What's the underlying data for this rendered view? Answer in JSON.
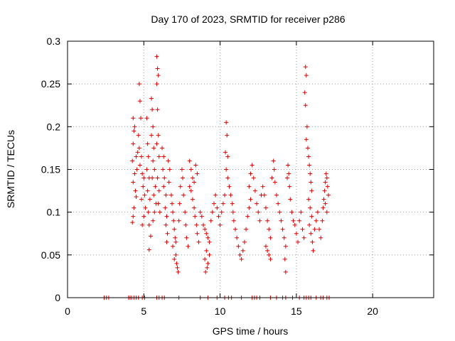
{
  "chart_data": {
    "type": "scatter",
    "title": "Day 170 of 2023, SRMTID for receiver p286",
    "xlabel": "GPS time / hours",
    "ylabel": "SRMTID / TECUs",
    "xlim": [
      0,
      24
    ],
    "ylim": [
      0,
      0.3
    ],
    "x_ticks": [
      0,
      5,
      10,
      15,
      20
    ],
    "y_ticks": [
      0,
      0.05,
      0.1,
      0.15,
      0.2,
      0.25,
      0.3
    ],
    "x_tick_labels": [
      "0",
      "5",
      "10",
      "15",
      "20"
    ],
    "y_tick_labels": [
      "0",
      "0.05",
      "0.1",
      "0.15",
      "0.2",
      "0.25",
      "0.3"
    ],
    "grid": true,
    "marker": "+",
    "color": "#e00000",
    "series": [
      {
        "name": "SRMTID",
        "points": [
          [
            2.4,
            0
          ],
          [
            2.55,
            0
          ],
          [
            2.7,
            0
          ],
          [
            4.0,
            0
          ],
          [
            4.1,
            0
          ],
          [
            4.2,
            0
          ],
          [
            4.35,
            0
          ],
          [
            4.5,
            0
          ],
          [
            4.65,
            0
          ],
          [
            4.9,
            0
          ],
          [
            5.05,
            0
          ],
          [
            5.85,
            0
          ],
          [
            6.0,
            0
          ],
          [
            6.2,
            0
          ],
          [
            6.35,
            0
          ],
          [
            7.3,
            0
          ],
          [
            8.7,
            0
          ],
          [
            9.2,
            0
          ],
          [
            9.8,
            0
          ],
          [
            10.3,
            0
          ],
          [
            10.55,
            0
          ],
          [
            10.75,
            0
          ],
          [
            11.4,
            0
          ],
          [
            12.1,
            0
          ],
          [
            12.25,
            0
          ],
          [
            12.4,
            0
          ],
          [
            12.6,
            0
          ],
          [
            13.3,
            0
          ],
          [
            13.7,
            0
          ],
          [
            14.1,
            0
          ],
          [
            14.3,
            0
          ],
          [
            14.75,
            0
          ],
          [
            15.2,
            0
          ],
          [
            15.5,
            0
          ],
          [
            15.65,
            0
          ],
          [
            15.8,
            0
          ],
          [
            15.95,
            0
          ],
          [
            16.3,
            0
          ],
          [
            16.6,
            0
          ],
          [
            16.75,
            0
          ],
          [
            17.0,
            0
          ],
          [
            17.15,
            0
          ],
          [
            4.3,
            0.21
          ],
          [
            4.35,
            0.195
          ],
          [
            4.4,
            0.2
          ],
          [
            4.3,
            0.18
          ],
          [
            4.5,
            0.165
          ],
          [
            4.6,
            0.17
          ],
          [
            4.25,
            0.16
          ],
          [
            4.4,
            0.145
          ],
          [
            4.3,
            0.135
          ],
          [
            4.45,
            0.125
          ],
          [
            4.35,
            0.105
          ],
          [
            4.3,
            0.095
          ],
          [
            4.25,
            0.088
          ],
          [
            4.5,
            0.118
          ],
          [
            4.55,
            0.15
          ],
          [
            4.7,
            0.25
          ],
          [
            4.75,
            0.23
          ],
          [
            4.8,
            0.21
          ],
          [
            4.65,
            0.19
          ],
          [
            4.7,
            0.175
          ],
          [
            4.85,
            0.165
          ],
          [
            4.75,
            0.155
          ],
          [
            4.9,
            0.145
          ],
          [
            5.0,
            0.14
          ],
          [
            4.95,
            0.13
          ],
          [
            5.05,
            0.12
          ],
          [
            4.85,
            0.115
          ],
          [
            5.1,
            0.105
          ],
          [
            5.0,
            0.095
          ],
          [
            4.9,
            0.085
          ],
          [
            5.2,
            0.21
          ],
          [
            5.25,
            0.18
          ],
          [
            5.3,
            0.165
          ],
          [
            5.2,
            0.15
          ],
          [
            5.35,
            0.14
          ],
          [
            5.25,
            0.125
          ],
          [
            5.4,
            0.115
          ],
          [
            5.3,
            0.1
          ],
          [
            5.35,
            0.085
          ],
          [
            5.45,
            0.072
          ],
          [
            5.35,
            0.056
          ],
          [
            5.5,
            0.233
          ],
          [
            5.55,
            0.22
          ],
          [
            5.6,
            0.2
          ],
          [
            5.5,
            0.19
          ],
          [
            5.65,
            0.175
          ],
          [
            5.6,
            0.16
          ],
          [
            5.7,
            0.15
          ],
          [
            5.55,
            0.14
          ],
          [
            5.75,
            0.13
          ],
          [
            5.65,
            0.12
          ],
          [
            5.8,
            0.11
          ],
          [
            5.7,
            0.1
          ],
          [
            5.6,
            0.09
          ],
          [
            5.85,
            0.282
          ],
          [
            5.9,
            0.268
          ],
          [
            5.95,
            0.26
          ],
          [
            5.85,
            0.25
          ],
          [
            5.9,
            0.22
          ],
          [
            5.95,
            0.19
          ],
          [
            5.85,
            0.18
          ],
          [
            6.0,
            0.165
          ],
          [
            5.9,
            0.14
          ],
          [
            6.0,
            0.125
          ],
          [
            5.95,
            0.11
          ],
          [
            6.05,
            0.1
          ],
          [
            6.2,
            0.175
          ],
          [
            6.3,
            0.165
          ],
          [
            6.25,
            0.15
          ],
          [
            6.35,
            0.14
          ],
          [
            6.3,
            0.13
          ],
          [
            6.45,
            0.12
          ],
          [
            6.4,
            0.105
          ],
          [
            6.5,
            0.095
          ],
          [
            6.45,
            0.085
          ],
          [
            6.55,
            0.075
          ],
          [
            6.5,
            0.065
          ],
          [
            6.6,
            0.16
          ],
          [
            6.7,
            0.15
          ],
          [
            6.65,
            0.135
          ],
          [
            6.8,
            0.12
          ],
          [
            6.85,
            0.11
          ],
          [
            6.9,
            0.1
          ],
          [
            6.95,
            0.09
          ],
          [
            7.0,
            0.08
          ],
          [
            7.05,
            0.07
          ],
          [
            6.9,
            0.06
          ],
          [
            7.1,
            0.05
          ],
          [
            7.15,
            0.04
          ],
          [
            7.2,
            0.035
          ],
          [
            7.25,
            0.03
          ],
          [
            7.0,
            0.045
          ],
          [
            7.1,
            0.065
          ],
          [
            7.3,
            0.09
          ],
          [
            7.35,
            0.11
          ],
          [
            7.4,
            0.13
          ],
          [
            7.5,
            0.15
          ],
          [
            7.55,
            0.14
          ],
          [
            7.6,
            0.12
          ],
          [
            7.7,
            0.1
          ],
          [
            7.75,
            0.085
          ],
          [
            7.8,
            0.07
          ],
          [
            7.9,
            0.06
          ],
          [
            8.0,
            0.13
          ],
          [
            8.1,
            0.125
          ],
          [
            8.2,
            0.115
          ],
          [
            8.3,
            0.105
          ],
          [
            8.35,
            0.095
          ],
          [
            8.45,
            0.085
          ],
          [
            8.5,
            0.075
          ],
          [
            8.6,
            0.065
          ],
          [
            8.0,
            0.16
          ],
          [
            8.1,
            0.15
          ],
          [
            8.2,
            0.14
          ],
          [
            8.3,
            0.135
          ],
          [
            8.4,
            0.155
          ],
          [
            8.5,
            0.145
          ],
          [
            8.7,
            0.1
          ],
          [
            8.8,
            0.095
          ],
          [
            8.9,
            0.085
          ],
          [
            9.0,
            0.08
          ],
          [
            9.1,
            0.075
          ],
          [
            9.2,
            0.07
          ],
          [
            9.3,
            0.065
          ],
          [
            9.1,
            0.055
          ],
          [
            9.0,
            0.045
          ],
          [
            9.2,
            0.04
          ],
          [
            9.05,
            0.03
          ],
          [
            9.15,
            0.035
          ],
          [
            9.3,
            0.05
          ],
          [
            9.4,
            0.09
          ],
          [
            9.5,
            0.1
          ],
          [
            9.6,
            0.11
          ],
          [
            9.7,
            0.12
          ],
          [
            9.8,
            0.105
          ],
          [
            9.9,
            0.095
          ],
          [
            10.0,
            0.085
          ],
          [
            10.1,
            0.1
          ],
          [
            10.2,
            0.11
          ],
          [
            10.3,
            0.12
          ],
          [
            10.4,
            0.205
          ],
          [
            10.45,
            0.19
          ],
          [
            10.35,
            0.17
          ],
          [
            10.5,
            0.165
          ],
          [
            10.4,
            0.15
          ],
          [
            10.5,
            0.14
          ],
          [
            10.6,
            0.13
          ],
          [
            10.7,
            0.12
          ],
          [
            10.8,
            0.11
          ],
          [
            10.85,
            0.1
          ],
          [
            10.9,
            0.09
          ],
          [
            11.0,
            0.08
          ],
          [
            11.1,
            0.07
          ],
          [
            11.2,
            0.06
          ],
          [
            11.3,
            0.05
          ],
          [
            11.4,
            0.045
          ],
          [
            11.5,
            0.055
          ],
          [
            11.6,
            0.065
          ],
          [
            11.7,
            0.08
          ],
          [
            11.8,
            0.095
          ],
          [
            11.9,
            0.105
          ],
          [
            12.0,
            0.115
          ],
          [
            11.9,
            0.13
          ],
          [
            12.0,
            0.145
          ],
          [
            12.1,
            0.155
          ],
          [
            12.2,
            0.14
          ],
          [
            12.3,
            0.125
          ],
          [
            12.4,
            0.11
          ],
          [
            12.5,
            0.1
          ],
          [
            12.6,
            0.09
          ],
          [
            12.7,
            0.12
          ],
          [
            12.8,
            0.13
          ],
          [
            12.9,
            0.12
          ],
          [
            13.0,
            0.105
          ],
          [
            13.1,
            0.09
          ],
          [
            13.2,
            0.08
          ],
          [
            13.3,
            0.07
          ],
          [
            13.0,
            0.06
          ],
          [
            13.1,
            0.055
          ],
          [
            13.2,
            0.05
          ],
          [
            13.3,
            0.045
          ],
          [
            13.4,
            0.14
          ],
          [
            13.5,
            0.16
          ],
          [
            13.55,
            0.15
          ],
          [
            13.6,
            0.135
          ],
          [
            13.7,
            0.12
          ],
          [
            13.8,
            0.11
          ],
          [
            13.9,
            0.1
          ],
          [
            14.0,
            0.09
          ],
          [
            14.1,
            0.08
          ],
          [
            14.2,
            0.07
          ],
          [
            14.3,
            0.06
          ],
          [
            14.25,
            0.045
          ],
          [
            14.3,
            0.03
          ],
          [
            14.4,
            0.14
          ],
          [
            14.45,
            0.155
          ],
          [
            14.5,
            0.145
          ],
          [
            14.55,
            0.13
          ],
          [
            14.6,
            0.115
          ],
          [
            14.7,
            0.1
          ],
          [
            14.8,
            0.09
          ],
          [
            14.9,
            0.085
          ],
          [
            15.0,
            0.075
          ],
          [
            15.1,
            0.065
          ],
          [
            15.2,
            0.09
          ],
          [
            15.3,
            0.1
          ],
          [
            15.4,
            0.08
          ],
          [
            15.5,
            0.07
          ],
          [
            15.6,
            0.27
          ],
          [
            15.65,
            0.26
          ],
          [
            15.55,
            0.24
          ],
          [
            15.6,
            0.225
          ],
          [
            15.7,
            0.2
          ],
          [
            15.65,
            0.185
          ],
          [
            15.75,
            0.175
          ],
          [
            15.8,
            0.165
          ],
          [
            15.85,
            0.155
          ],
          [
            15.9,
            0.145
          ],
          [
            15.95,
            0.135
          ],
          [
            16.0,
            0.125
          ],
          [
            15.8,
            0.115
          ],
          [
            15.9,
            0.105
          ],
          [
            16.0,
            0.095
          ],
          [
            15.85,
            0.085
          ],
          [
            15.95,
            0.075
          ],
          [
            16.05,
            0.065
          ],
          [
            16.1,
            0.055
          ],
          [
            16.2,
            0.08
          ],
          [
            16.3,
            0.09
          ],
          [
            16.4,
            0.1
          ],
          [
            16.5,
            0.08
          ],
          [
            16.6,
            0.07
          ],
          [
            16.7,
            0.09
          ],
          [
            16.75,
            0.105
          ],
          [
            16.8,
            0.115
          ],
          [
            16.85,
            0.125
          ],
          [
            16.9,
            0.135
          ],
          [
            16.95,
            0.145
          ],
          [
            17.0,
            0.14
          ],
          [
            17.05,
            0.13
          ],
          [
            17.1,
            0.12
          ],
          [
            16.9,
            0.11
          ],
          [
            17.0,
            0.1
          ]
        ]
      }
    ]
  }
}
